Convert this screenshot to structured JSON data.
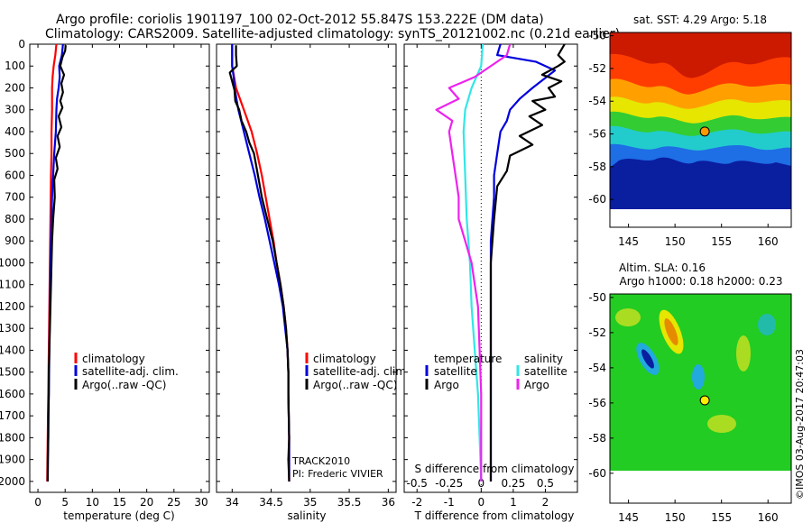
{
  "header": {
    "line1": "Argo profile: coriolis 1901197_100 02-Oct-2012 55.847S 153.222E (DM data)",
    "line2": "Climatology: CARS2009. Satellite-adjusted climatology: synTS_20121002.nc (0.21d earlier)"
  },
  "colors": {
    "climatology": "#ff0000",
    "satellite": "#0000dd",
    "argo": "#000000",
    "t_sat": "#0000dd",
    "s_sat": "#33e6e6",
    "s_argo": "#ee22ee"
  },
  "chart_data": [
    {
      "type": "line",
      "id": "temperature",
      "xlabel": "temperature (deg C)",
      "ylabel": "",
      "xlim": [
        -1.5,
        31.5
      ],
      "ylim": [
        2050,
        0
      ],
      "xticks": [
        0,
        5,
        10,
        15,
        20,
        25,
        30
      ],
      "yticks": [
        0,
        100,
        200,
        300,
        400,
        500,
        600,
        700,
        800,
        900,
        1000,
        1100,
        1200,
        1300,
        1400,
        1500,
        1600,
        1700,
        1800,
        1900,
        2000
      ],
      "legend": [
        "climatology",
        "satellite-adj. clim.",
        "Argo(..raw -QC)"
      ],
      "series": [
        {
          "name": "climatology",
          "color": "#ff0000",
          "points": [
            [
              3.4,
              0
            ],
            [
              3.2,
              50
            ],
            [
              2.9,
              100
            ],
            [
              2.7,
              150
            ],
            [
              2.6,
              200
            ],
            [
              2.6,
              300
            ],
            [
              2.5,
              400
            ],
            [
              2.5,
              500
            ],
            [
              2.4,
              600
            ],
            [
              2.3,
              800
            ],
            [
              2.2,
              1000
            ],
            [
              2.1,
              1200
            ],
            [
              2.0,
              1400
            ],
            [
              1.9,
              1600
            ],
            [
              1.8,
              1800
            ],
            [
              1.7,
              2000
            ]
          ]
        },
        {
          "name": "satellite-adj. clim.",
          "color": "#0000dd",
          "points": [
            [
              4.6,
              0
            ],
            [
              4.4,
              50
            ],
            [
              3.9,
              100
            ],
            [
              4.0,
              150
            ],
            [
              3.8,
              200
            ],
            [
              3.5,
              250
            ],
            [
              3.4,
              300
            ],
            [
              3.3,
              400
            ],
            [
              3.0,
              500
            ],
            [
              2.8,
              600
            ],
            [
              2.6,
              700
            ],
            [
              2.4,
              900
            ],
            [
              2.3,
              1000
            ],
            [
              2.2,
              1200
            ],
            [
              2.1,
              1400
            ],
            [
              2.0,
              1600
            ],
            [
              1.9,
              1800
            ],
            [
              1.8,
              2000
            ]
          ]
        },
        {
          "name": "Argo(..raw -QC)",
          "color": "#000000",
          "points": [
            [
              5.1,
              5
            ],
            [
              5.0,
              30
            ],
            [
              4.5,
              60
            ],
            [
              4.1,
              100
            ],
            [
              4.8,
              140
            ],
            [
              4.3,
              180
            ],
            [
              4.6,
              220
            ],
            [
              4.1,
              260
            ],
            [
              4.5,
              290
            ],
            [
              3.8,
              330
            ],
            [
              4.3,
              380
            ],
            [
              3.6,
              420
            ],
            [
              4.0,
              470
            ],
            [
              3.3,
              520
            ],
            [
              3.6,
              570
            ],
            [
              3.0,
              620
            ],
            [
              3.1,
              700
            ],
            [
              2.8,
              800
            ],
            [
              2.6,
              900
            ],
            [
              2.5,
              1000
            ],
            [
              2.4,
              1100
            ],
            [
              2.3,
              1200
            ],
            [
              2.2,
              1300
            ],
            [
              2.1,
              1400
            ],
            [
              2.0,
              1500
            ],
            [
              2.0,
              1600
            ],
            [
              1.9,
              1700
            ],
            [
              1.9,
              1800
            ],
            [
              1.8,
              1900
            ],
            [
              1.8,
              2000
            ]
          ]
        }
      ]
    },
    {
      "type": "line",
      "id": "salinity",
      "xlabel": "salinity",
      "ylabel": "",
      "xlim": [
        33.8,
        36.1
      ],
      "ylim": [
        2050,
        0
      ],
      "xticks": [
        34,
        34.5,
        35,
        35.5,
        36
      ],
      "legend": [
        "climatology",
        "satellite-adj. clim.",
        "Argo(..raw -QC)"
      ],
      "annotations": [
        "TRACK2010",
        "PI: Frederic VIVIER"
      ],
      "series": [
        {
          "name": "climatology",
          "color": "#ff0000",
          "points": [
            [
              34.0,
              0
            ],
            [
              34.0,
              50
            ],
            [
              34.0,
              100
            ],
            [
              34.05,
              200
            ],
            [
              34.15,
              300
            ],
            [
              34.25,
              400
            ],
            [
              34.32,
              500
            ],
            [
              34.38,
              600
            ],
            [
              34.43,
              700
            ],
            [
              34.48,
              800
            ],
            [
              34.53,
              900
            ],
            [
              34.57,
              1000
            ],
            [
              34.62,
              1100
            ],
            [
              34.66,
              1200
            ],
            [
              34.69,
              1300
            ],
            [
              34.71,
              1400
            ],
            [
              34.72,
              1500
            ],
            [
              34.72,
              1600
            ],
            [
              34.73,
              1800
            ],
            [
              34.73,
              2000
            ]
          ]
        },
        {
          "name": "satellite-adj. clim.",
          "color": "#0000dd",
          "points": [
            [
              34.0,
              0
            ],
            [
              34.0,
              50
            ],
            [
              34.0,
              100
            ],
            [
              34.02,
              150
            ],
            [
              34.03,
              200
            ],
            [
              34.08,
              300
            ],
            [
              34.15,
              400
            ],
            [
              34.22,
              500
            ],
            [
              34.29,
              600
            ],
            [
              34.35,
              700
            ],
            [
              34.42,
              800
            ],
            [
              34.48,
              900
            ],
            [
              34.54,
              1000
            ],
            [
              34.6,
              1100
            ],
            [
              34.65,
              1200
            ],
            [
              34.68,
              1300
            ],
            [
              34.71,
              1400
            ],
            [
              34.72,
              1500
            ],
            [
              34.72,
              1600
            ],
            [
              34.73,
              1800
            ],
            [
              34.73,
              2000
            ]
          ]
        },
        {
          "name": "Argo(..raw -QC)",
          "color": "#000000",
          "points": [
            [
              34.05,
              5
            ],
            [
              34.05,
              50
            ],
            [
              34.06,
              100
            ],
            [
              33.97,
              130
            ],
            [
              34.0,
              170
            ],
            [
              34.03,
              210
            ],
            [
              34.04,
              260
            ],
            [
              34.09,
              300
            ],
            [
              34.12,
              350
            ],
            [
              34.18,
              400
            ],
            [
              34.22,
              450
            ],
            [
              34.28,
              500
            ],
            [
              34.33,
              600
            ],
            [
              34.38,
              700
            ],
            [
              34.45,
              800
            ],
            [
              34.52,
              900
            ],
            [
              34.57,
              1000
            ],
            [
              34.62,
              1100
            ],
            [
              34.66,
              1200
            ],
            [
              34.69,
              1300
            ],
            [
              34.71,
              1400
            ],
            [
              34.72,
              1500
            ],
            [
              34.72,
              1600
            ],
            [
              34.73,
              1800
            ],
            [
              34.72,
              1900
            ],
            [
              34.73,
              2000
            ]
          ]
        }
      ]
    },
    {
      "type": "line",
      "id": "difference",
      "xlabel": "T difference from climatology",
      "x2label": "S difference from climatology",
      "xlim": [
        -2.4,
        3.0
      ],
      "ylim": [
        2050,
        0
      ],
      "xticks": [
        -2,
        -1,
        0,
        1,
        2
      ],
      "x2ticks": [
        "-0.5",
        "-0.25",
        "0",
        "0.25",
        "0.5"
      ],
      "x2tick_positions": [
        -2,
        -1,
        0,
        1,
        2
      ],
      "legend_groups": [
        {
          "title": "temperature",
          "items": [
            "satellite",
            "Argo"
          ]
        },
        {
          "title": "salinity",
          "items": [
            "satellite",
            "Argo"
          ]
        }
      ],
      "series": [
        {
          "name": "temperature satellite",
          "color": "#0000dd",
          "points": [
            [
              0.6,
              0
            ],
            [
              0.5,
              50
            ],
            [
              1.7,
              80
            ],
            [
              2.3,
              120
            ],
            [
              1.6,
              200
            ],
            [
              1.2,
              250
            ],
            [
              0.9,
              300
            ],
            [
              0.8,
              350
            ],
            [
              0.6,
              400
            ],
            [
              0.5,
              500
            ],
            [
              0.4,
              600
            ],
            [
              0.4,
              700
            ],
            [
              0.3,
              900
            ],
            [
              0.3,
              1100
            ],
            [
              0.3,
              1400
            ],
            [
              0.3,
              1700
            ],
            [
              0.3,
              2000
            ]
          ]
        },
        {
          "name": "temperature Argo",
          "color": "#000000",
          "points": [
            [
              2.6,
              0
            ],
            [
              2.4,
              50
            ],
            [
              2.6,
              80
            ],
            [
              2.4,
              100
            ],
            [
              1.9,
              140
            ],
            [
              2.5,
              170
            ],
            [
              2.1,
              200
            ],
            [
              2.3,
              240
            ],
            [
              1.6,
              260
            ],
            [
              2.0,
              300
            ],
            [
              1.5,
              330
            ],
            [
              1.9,
              370
            ],
            [
              1.2,
              420
            ],
            [
              1.6,
              460
            ],
            [
              0.9,
              510
            ],
            [
              0.8,
              580
            ],
            [
              0.5,
              650
            ],
            [
              0.4,
              800
            ],
            [
              0.3,
              1000
            ],
            [
              0.3,
              1300
            ],
            [
              0.3,
              1600
            ],
            [
              0.3,
              2000
            ]
          ]
        },
        {
          "name": "salinity satellite",
          "color": "#33e6e6",
          "points": [
            [
              0.05,
              0
            ],
            [
              0.0,
              100
            ],
            [
              -0.3,
              200
            ],
            [
              -0.5,
              300
            ],
            [
              -0.55,
              400
            ],
            [
              -0.5,
              600
            ],
            [
              -0.45,
              800
            ],
            [
              -0.35,
              1000
            ],
            [
              -0.3,
              1200
            ],
            [
              -0.2,
              1400
            ],
            [
              -0.1,
              1600
            ],
            [
              -0.05,
              1800
            ],
            [
              0.0,
              2000
            ]
          ]
        },
        {
          "name": "salinity Argo",
          "color": "#ee22ee",
          "points": [
            [
              0.9,
              0
            ],
            [
              0.8,
              50
            ],
            [
              -0.2,
              150
            ],
            [
              -1.0,
              200
            ],
            [
              -0.7,
              250
            ],
            [
              -1.4,
              300
            ],
            [
              -0.9,
              350
            ],
            [
              -1.0,
              400
            ],
            [
              -0.9,
              500
            ],
            [
              -0.8,
              600
            ],
            [
              -0.7,
              700
            ],
            [
              -0.7,
              800
            ],
            [
              -0.5,
              900
            ],
            [
              -0.3,
              1000
            ],
            [
              -0.2,
              1100
            ],
            [
              -0.1,
              1200
            ],
            [
              -0.05,
              1400
            ],
            [
              0.0,
              1600
            ],
            [
              0.0,
              1800
            ],
            [
              0.0,
              2000
            ]
          ]
        }
      ]
    },
    {
      "type": "heatmap",
      "id": "sst-map",
      "title": "sat. SST: 4.29 Argo: 5.18",
      "xlim": [
        143,
        162.5
      ],
      "ylim": [
        -61.7,
        -49.8
      ],
      "xticks": [
        145,
        150,
        155,
        160
      ],
      "yticks": [
        -50,
        -52,
        -54,
        -56,
        -58,
        -60
      ],
      "data_extent": {
        "lon": [
          143,
          162.5
        ],
        "lat": [
          -60.1,
          -49.8
        ]
      },
      "marker": {
        "lon": 153.2,
        "lat": -55.85,
        "fill": "#ff9900"
      }
    },
    {
      "type": "heatmap",
      "id": "sla-map",
      "title": "Altim. SLA: 0.16",
      "subtitle": "Argo h1000: 0.18 h2000: 0.23",
      "xlim": [
        143,
        162.5
      ],
      "ylim": [
        -61.7,
        -49.8
      ],
      "xticks": [
        145,
        150,
        155,
        160
      ],
      "yticks": [
        -50,
        -52,
        -54,
        -56,
        -58,
        -60
      ],
      "data_extent": {
        "lon": [
          143,
          162.5
        ],
        "lat": [
          -60.1,
          -49.8
        ]
      },
      "marker": {
        "lon": 153.2,
        "lat": -55.85,
        "fill": "#ffee00"
      }
    }
  ],
  "footer": {
    "watermark": "©IMOS 03-Aug-2017 20:47:03"
  }
}
